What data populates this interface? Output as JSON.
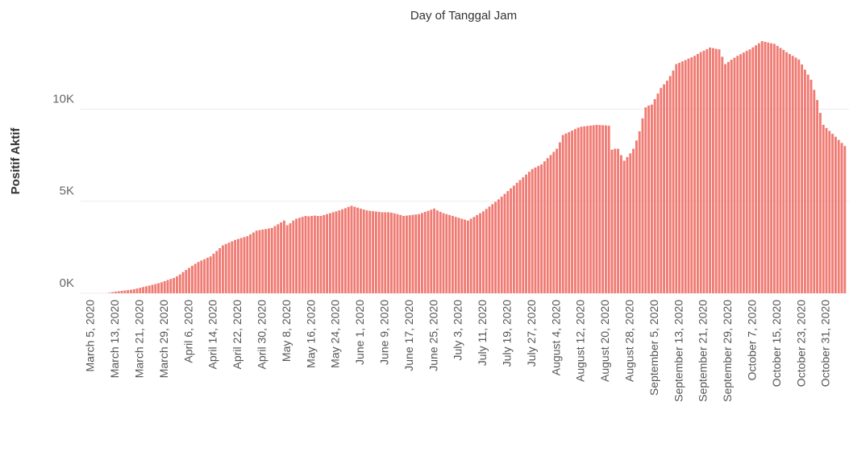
{
  "chart_data": {
    "type": "bar",
    "title": "Day of Tanggal Jam",
    "y_label": "Positif Aktif",
    "categories": [
      "March 5, 2020",
      null,
      null,
      null,
      null,
      null,
      null,
      null,
      "March 13, 2020",
      null,
      null,
      null,
      null,
      null,
      null,
      null,
      "March 21, 2020",
      null,
      null,
      null,
      null,
      null,
      null,
      null,
      "March 29, 2020",
      null,
      null,
      null,
      null,
      null,
      null,
      null,
      "April 6, 2020",
      null,
      null,
      null,
      null,
      null,
      null,
      null,
      "April 14, 2020",
      null,
      null,
      null,
      null,
      null,
      null,
      null,
      "April 22, 2020",
      null,
      null,
      null,
      null,
      null,
      null,
      null,
      "April 30, 2020",
      null,
      null,
      null,
      null,
      null,
      null,
      null,
      "May 8, 2020",
      null,
      null,
      null,
      null,
      null,
      null,
      null,
      "May 16, 2020",
      null,
      null,
      null,
      null,
      null,
      null,
      null,
      "May 24, 2020",
      null,
      null,
      null,
      null,
      null,
      null,
      null,
      "June 1, 2020",
      null,
      null,
      null,
      null,
      null,
      null,
      null,
      "June 9, 2020",
      null,
      null,
      null,
      null,
      null,
      null,
      null,
      "June 17, 2020",
      null,
      null,
      null,
      null,
      null,
      null,
      null,
      "June 25, 2020",
      null,
      null,
      null,
      null,
      null,
      null,
      null,
      "July 3, 2020",
      null,
      null,
      null,
      null,
      null,
      null,
      null,
      "July 11, 2020",
      null,
      null,
      null,
      null,
      null,
      null,
      null,
      "July 19, 2020",
      null,
      null,
      null,
      null,
      null,
      null,
      null,
      "July 27, 2020",
      null,
      null,
      null,
      null,
      null,
      null,
      null,
      "August 4, 2020",
      null,
      null,
      null,
      null,
      null,
      null,
      null,
      "August 12, 2020",
      null,
      null,
      null,
      null,
      null,
      null,
      null,
      "August 20, 2020",
      null,
      null,
      null,
      null,
      null,
      null,
      null,
      "August 28, 2020",
      null,
      null,
      null,
      null,
      null,
      null,
      null,
      "September 5, 2020",
      null,
      null,
      null,
      null,
      null,
      null,
      null,
      "September 13, 2020",
      null,
      null,
      null,
      null,
      null,
      null,
      null,
      "September 21, 2020",
      null,
      null,
      null,
      null,
      null,
      null,
      null,
      "September 29, 2020",
      null,
      null,
      null,
      null,
      null,
      null,
      null,
      "October 7, 2020",
      null,
      null,
      null,
      null,
      null,
      null,
      null,
      "October 15, 2020",
      null,
      null,
      null,
      null,
      null,
      null,
      null,
      "October 23, 2020",
      null,
      null,
      null,
      null,
      null,
      null,
      null,
      "October 31, 2020",
      null,
      null,
      null,
      null,
      null,
      null
    ],
    "values": [
      0,
      0,
      0,
      0,
      0,
      0,
      30,
      60,
      90,
      110,
      130,
      150,
      170,
      190,
      220,
      260,
      300,
      340,
      380,
      420,
      460,
      500,
      550,
      600,
      660,
      720,
      780,
      830,
      920,
      1020,
      1150,
      1270,
      1380,
      1490,
      1600,
      1700,
      1780,
      1850,
      1930,
      2000,
      2150,
      2300,
      2450,
      2600,
      2680,
      2750,
      2820,
      2900,
      2950,
      3000,
      3050,
      3100,
      3200,
      3300,
      3400,
      3430,
      3460,
      3490,
      3520,
      3550,
      3650,
      3750,
      3850,
      3950,
      3700,
      3800,
      3950,
      4050,
      4100,
      4150,
      4200,
      4180,
      4200,
      4220,
      4200,
      4200,
      4250,
      4300,
      4350,
      4400,
      4450,
      4500,
      4560,
      4620,
      4690,
      4750,
      4700,
      4650,
      4600,
      4550,
      4500,
      4480,
      4460,
      4440,
      4420,
      4400,
      4400,
      4400,
      4380,
      4340,
      4300,
      4250,
      4200,
      4220,
      4240,
      4260,
      4280,
      4300,
      4360,
      4420,
      4480,
      4540,
      4600,
      4500,
      4420,
      4350,
      4300,
      4250,
      4200,
      4150,
      4100,
      4050,
      4000,
      3950,
      4050,
      4150,
      4250,
      4350,
      4450,
      4580,
      4710,
      4840,
      4970,
      5100,
      5250,
      5400,
      5550,
      5700,
      5850,
      6000,
      6150,
      6300,
      6450,
      6600,
      6750,
      6830,
      6920,
      7000,
      7170,
      7340,
      7510,
      7680,
      7850,
      8200,
      8600,
      8680,
      8760,
      8840,
      8920,
      9000,
      9050,
      9070,
      9090,
      9110,
      9130,
      9150,
      9140,
      9130,
      9120,
      9100,
      7800,
      7850,
      7850,
      7500,
      7200,
      7400,
      7600,
      7850,
      8300,
      8800,
      9500,
      10100,
      10200,
      10250,
      10550,
      10850,
      11150,
      11350,
      11550,
      11800,
      12100,
      12450,
      12520,
      12600,
      12670,
      12750,
      12820,
      12900,
      13000,
      13100,
      13180,
      13260,
      13350,
      13320,
      13280,
      13250,
      12850,
      12450,
      12570,
      12690,
      12800,
      12900,
      12990,
      13080,
      13170,
      13250,
      13360,
      13470,
      13580,
      13700,
      13660,
      13620,
      13580,
      13550,
      13440,
      13330,
      13220,
      13100,
      13000,
      12900,
      12800,
      12700,
      12430,
      12150,
      11880,
      11600,
      11050,
      10500,
      9800,
      9150,
      8980,
      8820,
      8660,
      8500,
      8330,
      8170,
      8000
    ],
    "color": "#f07b73",
    "ylim": [
      0,
      14400
    ],
    "yticks": [
      {
        "value": 0,
        "label": "0K"
      },
      {
        "value": 5000,
        "label": "5K"
      },
      {
        "value": 10000,
        "label": "10K"
      }
    ],
    "grid": true
  }
}
